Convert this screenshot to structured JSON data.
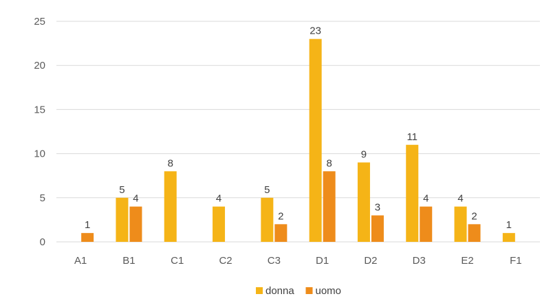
{
  "chart_data": {
    "type": "bar",
    "categories": [
      "A1",
      "B1",
      "C1",
      "C2",
      "C3",
      "D1",
      "D2",
      "D3",
      "E2",
      "F1"
    ],
    "series": [
      {
        "name": "donna",
        "color": "#F5B417",
        "values": [
          null,
          5,
          8,
          4,
          5,
          23,
          9,
          11,
          4,
          1
        ]
      },
      {
        "name": "uomo",
        "color": "#EE8C1B",
        "values": [
          1,
          4,
          null,
          null,
          2,
          8,
          3,
          4,
          2,
          null
        ]
      }
    ],
    "ylim": [
      0,
      25
    ],
    "yticks": [
      0,
      5,
      10,
      15,
      20,
      25
    ],
    "grid": true,
    "legend_position": "bottom",
    "title": "",
    "xlabel": "",
    "ylabel": ""
  }
}
